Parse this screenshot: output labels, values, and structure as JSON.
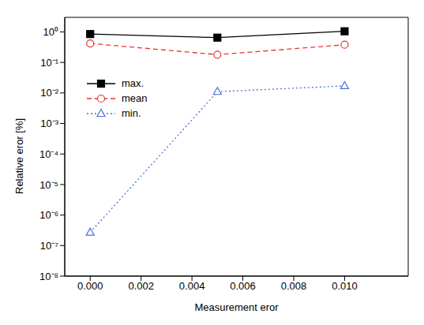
{
  "chart_data": {
    "type": "line",
    "xlabel": "Measurement eror",
    "ylabel": "Relative eror [%]",
    "x": [
      0,
      0.005,
      0.01
    ],
    "series": [
      {
        "name": "max.",
        "color": "#000000",
        "marker": "filled_square",
        "line_style": "solid",
        "values": [
          0.85,
          0.65,
          1.05
        ]
      },
      {
        "name": "mean",
        "color": "#e8312f",
        "marker": "open_circle",
        "line_style": "dashed",
        "values": [
          0.42,
          0.18,
          0.38
        ]
      },
      {
        "name": "min.",
        "color": "#4f6fd8",
        "marker": "open_triangle",
        "line_style": "dotted",
        "values": [
          2.7e-07,
          0.011,
          0.017
        ]
      }
    ],
    "xlim": [
      -0.001,
      0.0125
    ],
    "ylim": [
      1e-08,
      3
    ],
    "xticks": [
      {
        "value": 0,
        "label": "0.000"
      },
      {
        "value": 0.002,
        "label": "0.002"
      },
      {
        "value": 0.004,
        "label": "0.004"
      },
      {
        "value": 0.006,
        "label": "0.006"
      },
      {
        "value": 0.008,
        "label": "0.008"
      },
      {
        "value": 0.01,
        "label": "0.010"
      }
    ],
    "yticks": [
      {
        "value": 1e-08,
        "label": "10⁻⁸"
      },
      {
        "value": 1e-07,
        "label": "10⁻⁷"
      },
      {
        "value": 1e-06,
        "label": "10⁻⁶"
      },
      {
        "value": 1e-05,
        "label": "10⁻⁵"
      },
      {
        "value": 0.0001,
        "label": "10⁻⁴"
      },
      {
        "value": 0.001,
        "label": "10⁻³"
      },
      {
        "value": 0.01,
        "label": "10⁻²"
      },
      {
        "value": 0.1,
        "label": "10⁻¹"
      },
      {
        "value": 1,
        "label": "10⁰"
      }
    ],
    "log": "y",
    "legend": "upper left",
    "grid": false
  }
}
